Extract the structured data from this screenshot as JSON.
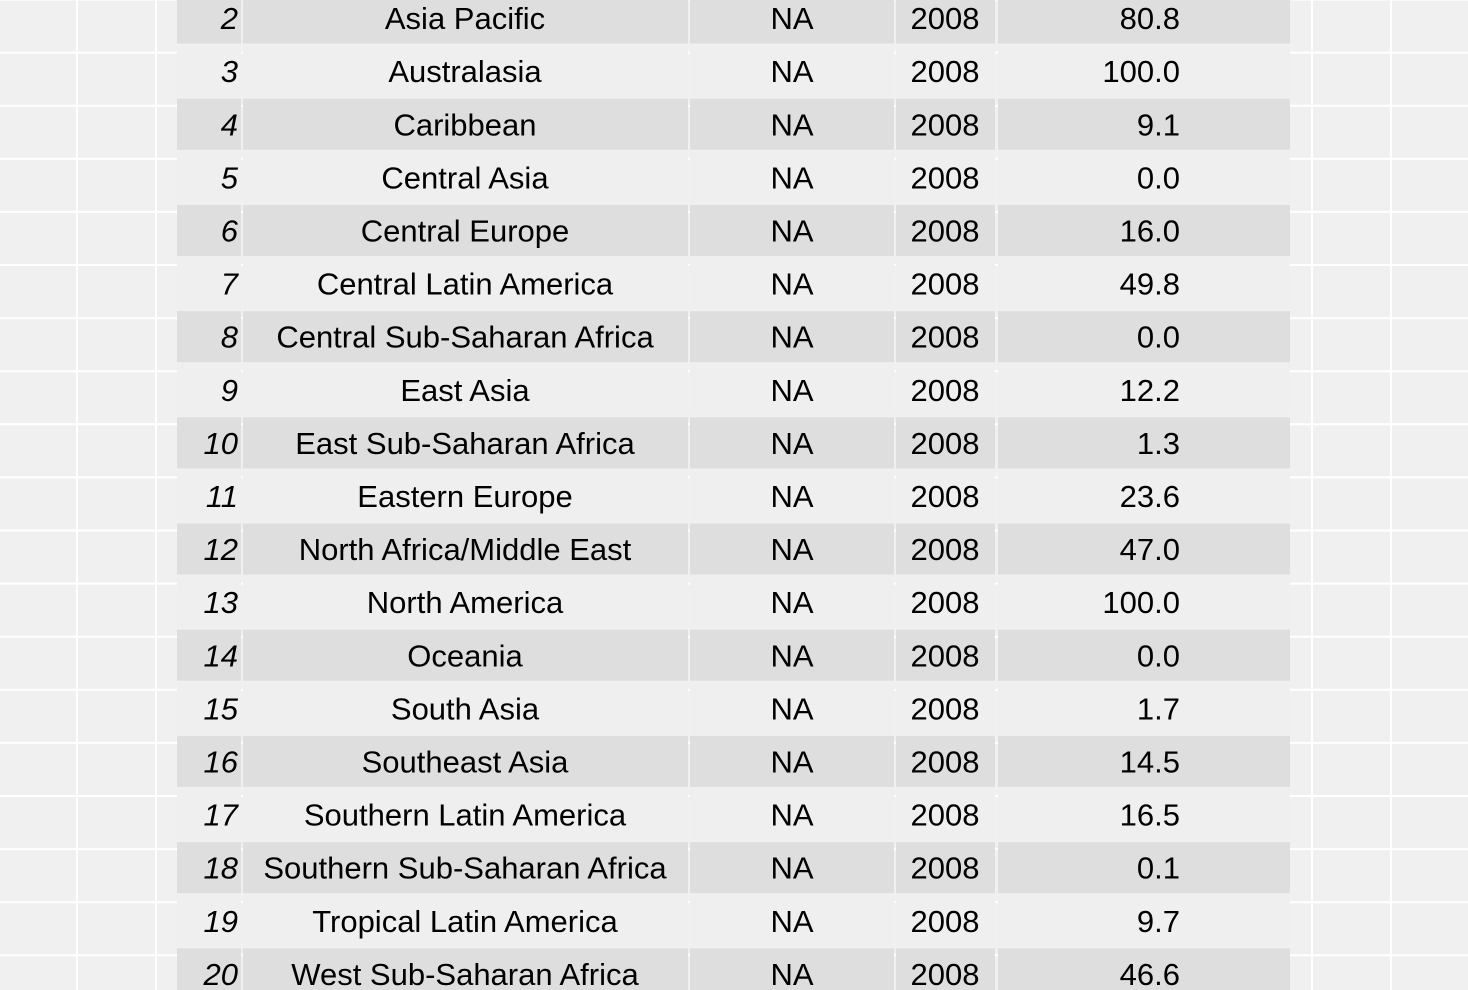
{
  "chart_data": {
    "type": "table",
    "columns": [
      "",
      "",
      "",
      "",
      ""
    ],
    "rows": [
      {
        "index": "2",
        "region": "Asia Pacific",
        "col2": "NA",
        "year": "2008",
        "value": "80.8"
      },
      {
        "index": "3",
        "region": "Australasia",
        "col2": "NA",
        "year": "2008",
        "value": "100.0"
      },
      {
        "index": "4",
        "region": "Caribbean",
        "col2": "NA",
        "year": "2008",
        "value": "9.1"
      },
      {
        "index": "5",
        "region": "Central Asia",
        "col2": "NA",
        "year": "2008",
        "value": "0.0"
      },
      {
        "index": "6",
        "region": "Central Europe",
        "col2": "NA",
        "year": "2008",
        "value": "16.0"
      },
      {
        "index": "7",
        "region": "Central Latin America",
        "col2": "NA",
        "year": "2008",
        "value": "49.8"
      },
      {
        "index": "8",
        "region": "Central Sub-Saharan Africa",
        "col2": "NA",
        "year": "2008",
        "value": "0.0"
      },
      {
        "index": "9",
        "region": "East Asia",
        "col2": "NA",
        "year": "2008",
        "value": "12.2"
      },
      {
        "index": "10",
        "region": "East Sub-Saharan Africa",
        "col2": "NA",
        "year": "2008",
        "value": "1.3"
      },
      {
        "index": "11",
        "region": "Eastern Europe",
        "col2": "NA",
        "year": "2008",
        "value": "23.6"
      },
      {
        "index": "12",
        "region": "North Africa/Middle East",
        "col2": "NA",
        "year": "2008",
        "value": "47.0"
      },
      {
        "index": "13",
        "region": "North America",
        "col2": "NA",
        "year": "2008",
        "value": "100.0"
      },
      {
        "index": "14",
        "region": "Oceania",
        "col2": "NA",
        "year": "2008",
        "value": "0.0"
      },
      {
        "index": "15",
        "region": "South Asia",
        "col2": "NA",
        "year": "2008",
        "value": "1.7"
      },
      {
        "index": "16",
        "region": "Southeast Asia",
        "col2": "NA",
        "year": "2008",
        "value": "14.5"
      },
      {
        "index": "17",
        "region": "Southern Latin America",
        "col2": "NA",
        "year": "2008",
        "value": "16.5"
      },
      {
        "index": "18",
        "region": "Southern Sub-Saharan Africa",
        "col2": "NA",
        "year": "2008",
        "value": "0.1"
      },
      {
        "index": "19",
        "region": "Tropical Latin America",
        "col2": "NA",
        "year": "2008",
        "value": "9.7"
      },
      {
        "index": "20",
        "region": "West Sub-Saharan Africa",
        "col2": "NA",
        "year": "2008",
        "value": "46.6"
      }
    ],
    "grid": true,
    "colors": {
      "background": "#f0f0f0",
      "gridline": "#ffffff",
      "row_even": "#dedede",
      "row_odd": "#efefef",
      "text": "#000000"
    }
  }
}
